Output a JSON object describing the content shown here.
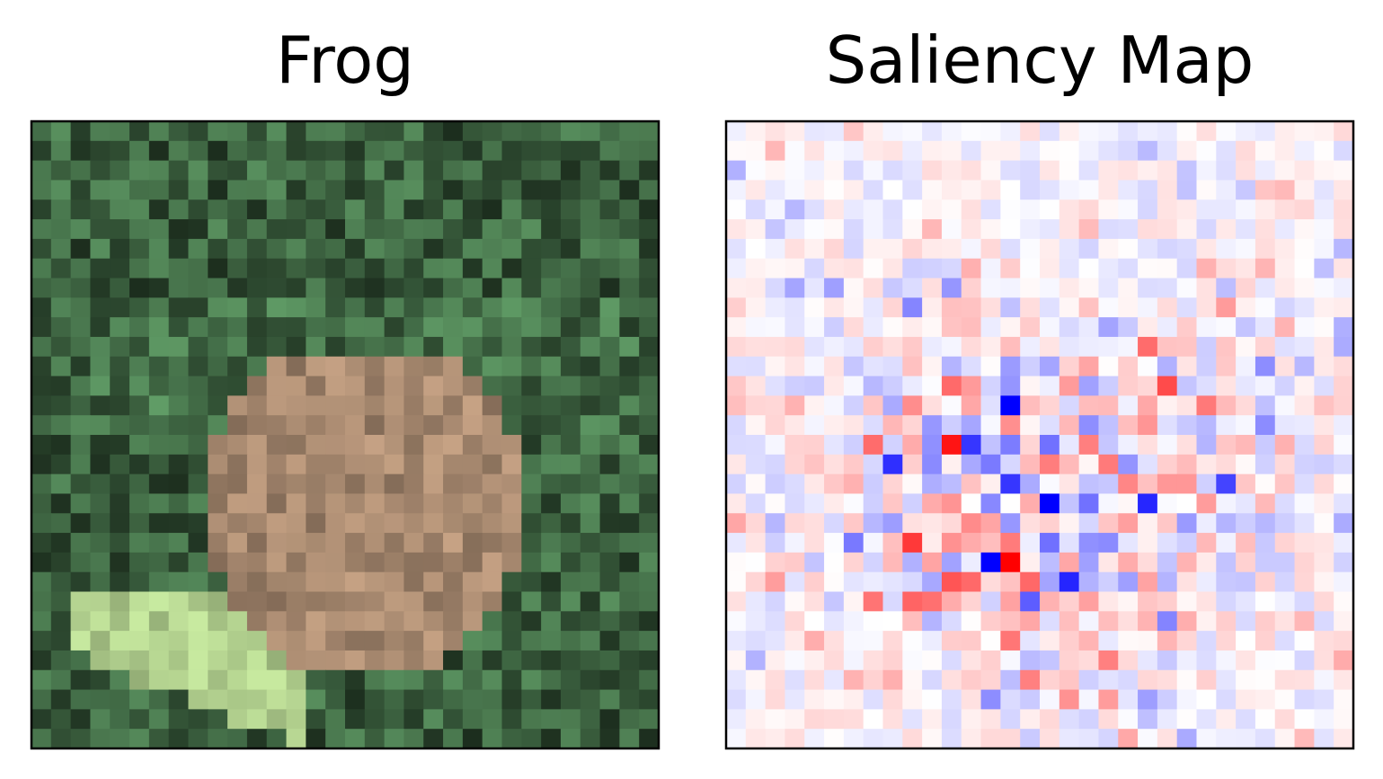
{
  "chart_data": [
    {
      "type": "image",
      "title": "Frog"
    },
    {
      "type": "image",
      "title": "Saliency Map"
    }
  ]
}
